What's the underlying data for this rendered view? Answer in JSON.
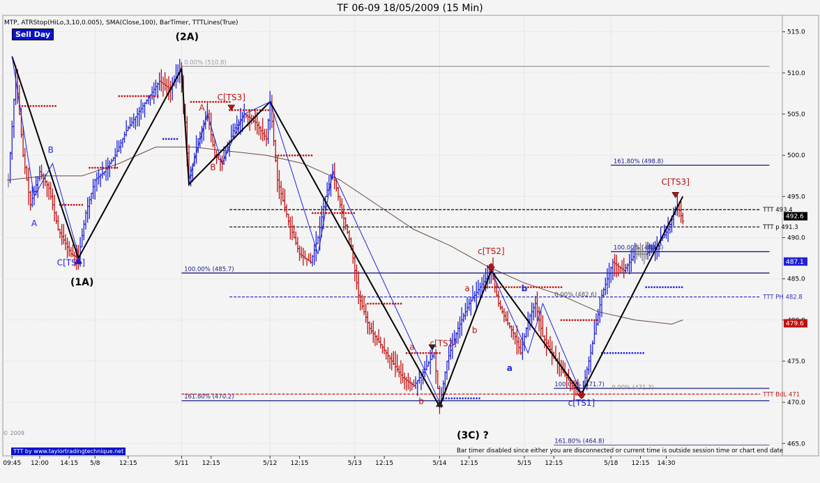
{
  "title": "TF 06-09  18/05/2009 (15 Min)",
  "indicators": "MTP,  ATRStop(HiLo,3,10,0.005),  SMA(Close,100),  BarTimer,  TTTLines(True)",
  "badge": "Sell Day",
  "footer_link": "TTT by www.taylortradingtechnique.net",
  "copyright": "© 2009",
  "bartimer_message": "Bar timer disabled since either you are disconnected or current time is outside session time or chart end date",
  "colors": {
    "background": "#f4f4f4",
    "grid": "#d4d4d4",
    "up_bar": "#1e22d8",
    "down_bar": "#c01010",
    "neutral_bar": "#808080",
    "atr_stop_up": "#1e22d8",
    "atr_stop_down": "#c01010",
    "sma": "#6a4a3a",
    "wave": "#000000",
    "fib": "#1a1a8a"
  },
  "chart_data": {
    "type": "candlestick",
    "instrument": "TF 06-09",
    "timeframe": "15 Min",
    "y_axis": {
      "ylim": [
        463.5,
        517.0
      ],
      "ticks": [
        465,
        470,
        475,
        480,
        485,
        490,
        495,
        500,
        505,
        510,
        515
      ]
    },
    "x_axis": {
      "index_range": [
        0,
        420
      ],
      "tick_labels": [
        {
          "label": "09:45",
          "i": 2
        },
        {
          "label": "12:00",
          "i": 17
        },
        {
          "label": "14:15",
          "i": 33
        },
        {
          "label": "5/8",
          "i": 47
        },
        {
          "label": "12:15",
          "i": 65
        },
        {
          "label": "5/11",
          "i": 94
        },
        {
          "label": "12:15",
          "i": 110
        },
        {
          "label": "5/12",
          "i": 142
        },
        {
          "label": "12:15",
          "i": 158
        },
        {
          "label": "5/13",
          "i": 188
        },
        {
          "label": "12:15",
          "i": 204
        },
        {
          "label": "5/14",
          "i": 234
        },
        {
          "label": "12:15",
          "i": 250
        },
        {
          "label": "5/15",
          "i": 280
        },
        {
          "label": "12:15",
          "i": 296
        },
        {
          "label": "5/18",
          "i": 327
        },
        {
          "label": "12:15",
          "i": 343
        },
        {
          "label": "14:30",
          "i": 357
        }
      ],
      "session_dividers": [
        47,
        94,
        142,
        188,
        234,
        280,
        327
      ]
    },
    "price_path": [
      [
        0,
        497
      ],
      [
        4,
        510
      ],
      [
        8,
        500
      ],
      [
        12,
        494
      ],
      [
        17,
        498
      ],
      [
        22,
        496
      ],
      [
        27,
        491
      ],
      [
        34,
        488
      ],
      [
        38,
        487.5
      ],
      [
        42,
        493
      ],
      [
        47,
        497
      ],
      [
        52,
        498
      ],
      [
        58,
        500
      ],
      [
        64,
        503
      ],
      [
        70,
        505
      ],
      [
        76,
        507
      ],
      [
        82,
        509
      ],
      [
        88,
        508
      ],
      [
        93,
        510.5
      ],
      [
        96,
        504
      ],
      [
        98,
        496.5
      ],
      [
        103,
        502
      ],
      [
        108,
        505
      ],
      [
        112,
        500
      ],
      [
        116,
        499
      ],
      [
        122,
        503
      ],
      [
        128,
        505
      ],
      [
        134,
        504
      ],
      [
        140,
        502
      ],
      [
        142,
        506.5
      ],
      [
        146,
        497
      ],
      [
        152,
        492
      ],
      [
        158,
        488
      ],
      [
        164,
        487
      ],
      [
        168,
        490
      ],
      [
        172,
        495
      ],
      [
        176,
        498
      ],
      [
        180,
        494
      ],
      [
        186,
        489
      ],
      [
        190,
        483
      ],
      [
        196,
        479
      ],
      [
        202,
        477
      ],
      [
        208,
        475
      ],
      [
        214,
        473
      ],
      [
        220,
        472
      ],
      [
        226,
        474
      ],
      [
        231,
        476
      ],
      [
        234,
        469.5
      ],
      [
        238,
        475
      ],
      [
        244,
        479
      ],
      [
        250,
        482
      ],
      [
        256,
        484
      ],
      [
        262,
        486
      ],
      [
        266,
        482
      ],
      [
        270,
        480
      ],
      [
        275,
        478
      ],
      [
        278,
        476
      ],
      [
        282,
        480
      ],
      [
        286,
        482
      ],
      [
        290,
        478
      ],
      [
        295,
        476
      ],
      [
        300,
        474
      ],
      [
        306,
        472
      ],
      [
        311,
        471
      ],
      [
        316,
        476
      ],
      [
        322,
        483
      ],
      [
        328,
        487
      ],
      [
        334,
        486
      ],
      [
        340,
        488
      ],
      [
        346,
        488
      ],
      [
        352,
        489
      ],
      [
        358,
        491
      ],
      [
        363,
        494
      ],
      [
        366,
        492
      ]
    ],
    "atr_stops": [
      {
        "from": 6,
        "to": 26,
        "level": 506,
        "side": "down"
      },
      {
        "from": 28,
        "to": 40,
        "level": 494,
        "side": "down"
      },
      {
        "from": 44,
        "to": 60,
        "level": 498.5,
        "side": "down"
      },
      {
        "from": 60,
        "to": 82,
        "level": 507.2,
        "side": "down"
      },
      {
        "from": 84,
        "to": 92,
        "level": 502,
        "side": "up"
      },
      {
        "from": 99,
        "to": 120,
        "level": 506.5,
        "side": "down"
      },
      {
        "from": 120,
        "to": 142,
        "level": 505.5,
        "side": "down"
      },
      {
        "from": 145,
        "to": 165,
        "level": 500,
        "side": "down"
      },
      {
        "from": 165,
        "to": 188,
        "level": 493,
        "side": "down"
      },
      {
        "from": 195,
        "to": 214,
        "level": 482,
        "side": "down"
      },
      {
        "from": 216,
        "to": 234,
        "level": 476,
        "side": "down"
      },
      {
        "from": 236,
        "to": 256,
        "level": 470.5,
        "side": "up"
      },
      {
        "from": 258,
        "to": 300,
        "level": 484,
        "side": "down"
      },
      {
        "from": 300,
        "to": 320,
        "level": 480,
        "side": "down"
      },
      {
        "from": 322,
        "to": 345,
        "level": 476,
        "side": "up"
      },
      {
        "from": 346,
        "to": 366,
        "level": 484,
        "side": "up"
      }
    ],
    "sma": [
      [
        0,
        497
      ],
      [
        20,
        497.5
      ],
      [
        40,
        497.5
      ],
      [
        60,
        499
      ],
      [
        80,
        501
      ],
      [
        100,
        501
      ],
      [
        120,
        500.5
      ],
      [
        140,
        500
      ],
      [
        160,
        499
      ],
      [
        180,
        497
      ],
      [
        200,
        494
      ],
      [
        220,
        491
      ],
      [
        240,
        489
      ],
      [
        260,
        486.5
      ],
      [
        280,
        484.5
      ],
      [
        300,
        483
      ],
      [
        320,
        481
      ],
      [
        340,
        480
      ],
      [
        360,
        479.5
      ],
      [
        366,
        480
      ]
    ],
    "waves": [
      {
        "points": [
          [
            2,
            512
          ],
          [
            38,
            487.5
          ],
          [
            94,
            510.5
          ],
          [
            98,
            496.5
          ],
          [
            142,
            506.5
          ],
          [
            234,
            469.5
          ],
          [
            262,
            486
          ],
          [
            311,
            471
          ],
          [
            366,
            495
          ]
        ],
        "color": "#000000",
        "width": 2
      },
      {
        "points": [
          [
            2,
            512
          ],
          [
            14,
            495
          ],
          [
            24,
            499
          ],
          [
            38,
            488
          ]
        ],
        "color": "#1e22d8",
        "width": 1
      },
      {
        "points": [
          [
            98,
            497
          ],
          [
            108,
            505
          ],
          [
            116,
            499
          ],
          [
            128,
            505
          ],
          [
            142,
            506.5
          ],
          [
            168,
            488
          ],
          [
            176,
            498
          ],
          [
            234,
            470
          ]
        ],
        "color": "#1e22d8",
        "width": 1
      },
      {
        "points": [
          [
            262,
            486
          ],
          [
            282,
            476
          ],
          [
            290,
            482
          ],
          [
            311,
            471
          ]
        ],
        "color": "#1e22d8",
        "width": 1
      }
    ],
    "fib_levels": [
      {
        "label": "0.00% (510.8)",
        "level": 510.8,
        "from": 94,
        "to": 413,
        "style": "solid",
        "color": "#9a9a9a",
        "label_i": 95
      },
      {
        "label": "100.00% (485.7)",
        "level": 485.7,
        "from": 94,
        "to": 413,
        "style": "solid",
        "color": "#1a1a8a",
        "label_i": 95
      },
      {
        "label": "161.80% (470.2)",
        "level": 470.2,
        "from": 94,
        "to": 413,
        "style": "solid",
        "color": "#1a1a8a",
        "label_i": 95
      },
      {
        "label": "161.80% (498.8)",
        "level": 498.8,
        "from": 327,
        "to": 413,
        "style": "solid",
        "color": "#1a1a8a",
        "label_i": 328
      },
      {
        "label": "100.00% (488.3)",
        "level": 488.3,
        "from": 327,
        "to": 413,
        "style": "solid",
        "color": "#1a1a8a",
        "label_i": 328
      },
      {
        "label": "0.00% (482.6)",
        "level": 482.6,
        "from": 296,
        "to": 413,
        "style": "none",
        "color": "#555555",
        "label_i": 296
      },
      {
        "label": "100.00% (471.7)",
        "level": 471.7,
        "from": 296,
        "to": 413,
        "style": "solid",
        "color": "#1a1a8a",
        "label_i": 296
      },
      {
        "label": "161.80% (464.8)",
        "level": 464.8,
        "from": 296,
        "to": 413,
        "style": "thin",
        "color": "#1a1a8a",
        "label_i": 296
      },
      {
        "label": "0.00% (471.3)",
        "level": 471.3,
        "from": 325,
        "to": 413,
        "style": "none",
        "color": "#888888",
        "label_i": 327
      }
    ],
    "ttt_lines": [
      {
        "label": "TTT  493.4",
        "level": 493.4,
        "from": 120,
        "to": 408,
        "color": "#000000",
        "style": "dash"
      },
      {
        "label": "TTT p 491.3",
        "level": 491.3,
        "from": 120,
        "to": 408,
        "color": "#000000",
        "style": "dash"
      },
      {
        "label": "TTT PH 482.8",
        "level": 482.8,
        "from": 120,
        "to": 408,
        "color": "#3030c0",
        "style": "dash"
      },
      {
        "label": "TTT BdL 471",
        "level": 471,
        "from": 94,
        "to": 408,
        "color": "#c01010",
        "style": "dash"
      }
    ],
    "right_price_labels": [
      {
        "label": "492.6",
        "level": 492.6,
        "bg": "#000000",
        "fg": "#ffffff"
      },
      {
        "label": "487.1",
        "level": 487.1,
        "bg": "#1e22d8",
        "fg": "#ffffff"
      },
      {
        "label": "479.6",
        "level": 479.6,
        "bg": "#c01010",
        "fg": "#ffffff"
      }
    ],
    "annotations": [
      {
        "text": "(2A)",
        "i": 97,
        "y": 514.0,
        "color": "#000000",
        "size": 14,
        "bold": true
      },
      {
        "text": "(1A)",
        "i": 40,
        "y": 484.2,
        "color": "#000000",
        "size": 14,
        "bold": true
      },
      {
        "text": "(3C) ?",
        "i": 252,
        "y": 465.6,
        "color": "#000000",
        "size": 14,
        "bold": true
      },
      {
        "text": "C[TS4]",
        "i": 34,
        "y": 486.6,
        "color": "#1e22d8",
        "size": 12,
        "bold": false
      },
      {
        "text": "C[TS3]",
        "i": 121,
        "y": 506.7,
        "color": "#c01010",
        "size": 12,
        "bold": false
      },
      {
        "text": "c[TS2]",
        "i": 236,
        "y": 476.8,
        "color": "#c01010",
        "size": 12,
        "bold": false
      },
      {
        "text": "c[TS2]",
        "i": 262,
        "y": 488.0,
        "color": "#c01010",
        "size": 12,
        "bold": false
      },
      {
        "text": "c[TS1]",
        "i": 311,
        "y": 469.6,
        "color": "#1e22d8",
        "size": 12,
        "bold": false
      },
      {
        "text": "C[TS3]",
        "i": 362,
        "y": 496.4,
        "color": "#c01010",
        "size": 12,
        "bold": false
      },
      {
        "text": "A",
        "i": 14,
        "y": 491.4,
        "color": "#1e22d8",
        "size": 12,
        "bold": false
      },
      {
        "text": "B",
        "i": 23,
        "y": 500.3,
        "color": "#1e22d8",
        "size": 12,
        "bold": false
      },
      {
        "text": "A",
        "i": 105,
        "y": 505.4,
        "color": "#c01010",
        "size": 12,
        "bold": false
      },
      {
        "text": "B",
        "i": 111,
        "y": 498.2,
        "color": "#c01010",
        "size": 12,
        "bold": false
      },
      {
        "text": "a",
        "i": 219,
        "y": 476.4,
        "color": "#c01010",
        "size": 12,
        "bold": false
      },
      {
        "text": "b",
        "i": 224,
        "y": 469.8,
        "color": "#c01010",
        "size": 12,
        "bold": false
      },
      {
        "text": "a",
        "i": 249,
        "y": 483.5,
        "color": "#c01010",
        "size": 12,
        "bold": false
      },
      {
        "text": "b",
        "i": 253,
        "y": 478.4,
        "color": "#c01010",
        "size": 12,
        "bold": false
      },
      {
        "text": "b",
        "i": 280,
        "y": 483.5,
        "color": "#1e22d8",
        "size": 12,
        "bold": true
      },
      {
        "text": "a",
        "i": 272,
        "y": 473.8,
        "color": "#1e22d8",
        "size": 12,
        "bold": true
      }
    ],
    "markers": [
      {
        "i": 121,
        "y": 505.6,
        "shape": "down-triangle",
        "color": "#c01010"
      },
      {
        "i": 262,
        "y": 486.4,
        "shape": "diamond",
        "color": "#c01010"
      },
      {
        "i": 311,
        "y": 470.9,
        "shape": "diamond",
        "color": "#c01010"
      },
      {
        "i": 38,
        "y": 487.4,
        "shape": "up-triangle",
        "color": "#1e22d8"
      },
      {
        "i": 362,
        "y": 495.0,
        "shape": "down-triangle",
        "color": "#c01010"
      },
      {
        "i": 230,
        "y": 476.5,
        "shape": "down-triangle",
        "color": "#222222"
      },
      {
        "i": 234,
        "y": 470.0,
        "shape": "up-triangle",
        "color": "#222222"
      }
    ]
  }
}
